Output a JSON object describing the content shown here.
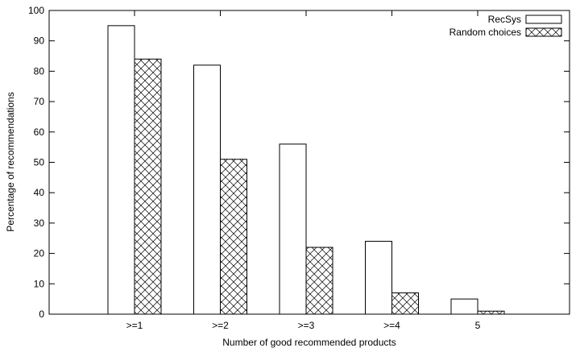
{
  "chart_data": {
    "type": "bar",
    "title": "",
    "xlabel": "Number of good recommended products",
    "ylabel": "Percentage of recommendations",
    "categories": [
      ">=1",
      ">=2",
      ">=3",
      ">=4",
      "5"
    ],
    "series": [
      {
        "name": "RecSys",
        "values": [
          95,
          82,
          56,
          24,
          5
        ],
        "fill": "none"
      },
      {
        "name": "Random choices",
        "values": [
          84,
          51,
          22,
          7,
          1
        ],
        "fill": "crosshatch"
      }
    ],
    "ylim": [
      0,
      100
    ],
    "yticks": [
      0,
      10,
      20,
      30,
      40,
      50,
      60,
      70,
      80,
      90,
      100
    ],
    "grid": false,
    "legend_position": "top-right",
    "colors": {
      "stroke": "#000000",
      "background": "#ffffff"
    }
  }
}
